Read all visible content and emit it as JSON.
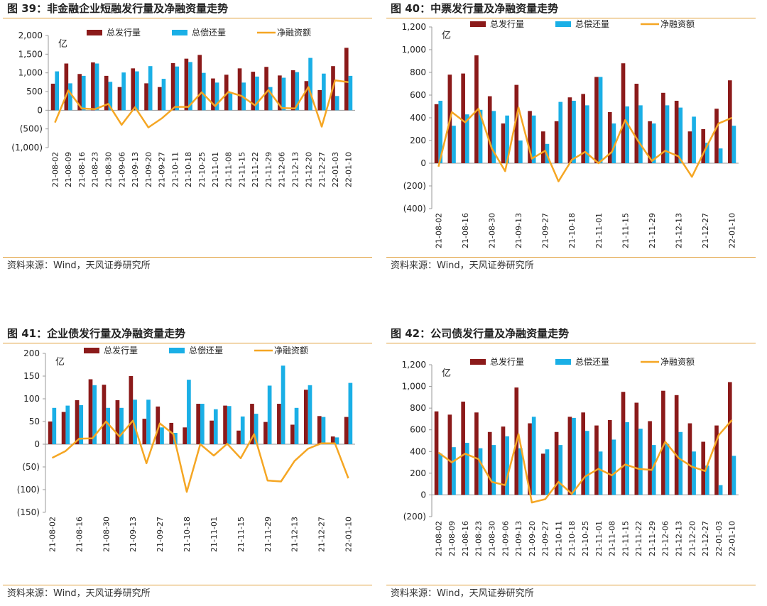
{
  "panels": [
    {
      "title": "图 39：非金融企业短融发行量及净融资量走势",
      "source": "资料来源：Wind，天风证券研究所",
      "unit": "亿",
      "chart_data": {
        "type": "bar",
        "categories": [
          "21-08-02",
          "21-08-09",
          "21-08-16",
          "21-08-23",
          "21-08-30",
          "21-09-06",
          "21-09-13",
          "21-09-20",
          "21-09-27",
          "21-10-11",
          "21-10-18",
          "21-10-25",
          "21-11-01",
          "21-11-08",
          "21-11-15",
          "21-11-22",
          "21-11-29",
          "21-12-06",
          "21-12-13",
          "21-12-20",
          "21-12-27",
          "22-01-03",
          "22-01-10"
        ],
        "category_labels": [
          "21-08-02",
          "21-08-09",
          "21-08-16",
          "21-08-23",
          "21-08-30",
          "21-09-06",
          "21-09-13",
          "21-09-20",
          "21-09-27",
          "21-10-11",
          "21-10-18",
          "21-10-25",
          "21-11-01",
          "21-11-08",
          "21-11-15",
          "21-11-22",
          "21-11-29",
          "21-12-06",
          "21-12-13",
          "21-12-20",
          "21-12-27",
          "22-01-03",
          "22-01-10"
        ],
        "series": [
          {
            "name": "总发行量",
            "type": "bar",
            "color": "#8b1a1a",
            "values": [
              710,
              1250,
              970,
              1280,
              920,
              620,
              1120,
              720,
              620,
              1260,
              1380,
              1480,
              850,
              950,
              1120,
              1030,
              1160,
              930,
              1070,
              780,
              540,
              1180,
              1670
            ]
          },
          {
            "name": "总偿还量",
            "type": "bar",
            "color": "#1aafe6",
            "values": [
              1040,
              720,
              920,
              1250,
              760,
              1010,
              1040,
              1180,
              840,
              1170,
              1290,
              1000,
              740,
              460,
              740,
              900,
              620,
              870,
              1020,
              1400,
              980,
              380,
              920
            ]
          },
          {
            "name": "净融资额",
            "type": "line",
            "color": "#f5a623",
            "values": [
              -330,
              530,
              50,
              30,
              170,
              -390,
              80,
              -460,
              -220,
              90,
              90,
              480,
              110,
              490,
              380,
              130,
              540,
              60,
              50,
              620,
              -440,
              800,
              750
            ]
          }
        ],
        "ylim": [
          -1000,
          2000
        ],
        "yticks": [
          -1000,
          -500,
          0,
          500,
          1000,
          1500,
          2000
        ],
        "ytick_labels": [
          "(1,000)",
          "(500)",
          "0",
          "500",
          "1,000",
          "1,500",
          "2,000"
        ],
        "legend": "top"
      }
    },
    {
      "title": "图 40：中票发行量及净融资量走势",
      "source": "资料来源：Wind，天风证券研究所",
      "unit": "亿",
      "chart_data": {
        "type": "bar",
        "categories": [
          "21-08-02",
          "21-08-09",
          "21-08-16",
          "21-08-23",
          "21-08-30",
          "21-09-06",
          "21-09-13",
          "21-09-20",
          "21-09-27",
          "21-10-11",
          "21-10-18",
          "21-10-25",
          "21-11-01",
          "21-11-08",
          "21-11-15",
          "21-11-22",
          "21-11-29",
          "21-12-06",
          "21-12-13",
          "21-12-20",
          "21-12-27",
          "22-01-03",
          "22-01-10"
        ],
        "category_labels": [
          "21-08-02",
          "",
          "21-08-16",
          "",
          "21-08-30",
          "",
          "21-09-13",
          "",
          "21-09-27",
          "",
          "21-10-18",
          "",
          "21-11-01",
          "",
          "21-11-15",
          "",
          "21-11-29",
          "",
          "21-12-13",
          "",
          "21-12-27",
          "",
          "22-01-10"
        ],
        "series": [
          {
            "name": "总发行量",
            "type": "bar",
            "color": "#8b1a1a",
            "values": [
              520,
              780,
              790,
              950,
              590,
              350,
              690,
              460,
              280,
              370,
              580,
              610,
              760,
              450,
              880,
              700,
              370,
              620,
              550,
              280,
              300,
              480,
              730
            ]
          },
          {
            "name": "总偿还量",
            "type": "bar",
            "color": "#1aafe6",
            "values": [
              550,
              330,
              430,
              470,
              460,
              420,
              200,
              420,
              170,
              540,
              550,
              510,
              760,
              350,
              500,
              510,
              350,
              510,
              490,
              410,
              180,
              130,
              330
            ]
          },
          {
            "name": "净融资额",
            "type": "line",
            "color": "#f5a623",
            "values": [
              -30,
              450,
              360,
              480,
              130,
              -70,
              490,
              40,
              110,
              -160,
              30,
              100,
              0,
              100,
              380,
              190,
              20,
              110,
              60,
              -120,
              120,
              350,
              400
            ]
          }
        ],
        "ylim": [
          -400,
          1200
        ],
        "yticks": [
          -400,
          -200,
          0,
          200,
          400,
          600,
          800,
          1000,
          1200
        ],
        "ytick_labels": [
          "(400)",
          "(200)",
          "0",
          "200",
          "400",
          "600",
          "800",
          "1,000",
          "1,200"
        ],
        "legend": "top"
      }
    },
    {
      "title": "图 41：企业债发行量及净融资量走势",
      "source": "资料来源：Wind，天风证券研究所",
      "unit": "亿",
      "chart_data": {
        "type": "bar",
        "categories": [
          "21-08-02",
          "21-08-09",
          "21-08-16",
          "21-08-23",
          "21-08-30",
          "21-09-06",
          "21-09-13",
          "21-09-20",
          "21-09-27",
          "21-10-11",
          "21-10-18",
          "21-10-25",
          "21-11-01",
          "21-11-08",
          "21-11-15",
          "21-11-22",
          "21-11-29",
          "21-12-06",
          "21-12-13",
          "21-12-20",
          "21-12-27",
          "22-01-03",
          "22-01-10"
        ],
        "category_labels": [
          "21-08-02",
          "",
          "21-08-16",
          "",
          "21-08-30",
          "",
          "21-09-13",
          "",
          "21-09-27",
          "",
          "21-10-18",
          "",
          "21-11-01",
          "",
          "21-11-15",
          "",
          "21-11-29",
          "",
          "21-12-13",
          "",
          "21-12-27",
          "",
          "22-01-10"
        ],
        "series": [
          {
            "name": "总发行量",
            "type": "bar",
            "color": "#8b1a1a",
            "values": [
              50,
              71,
              97,
              143,
              131,
              97,
              150,
              56,
              83,
              47,
              37,
              89,
              52,
              85,
              30,
              89,
              49,
              89,
              43,
              120,
              62,
              17,
              60
            ]
          },
          {
            "name": "总偿还量",
            "type": "bar",
            "color": "#1aafe6",
            "values": [
              80,
              85,
              86,
              130,
              80,
              80,
              98,
              98,
              37,
              25,
              142,
              89,
              77,
              84,
              61,
              67,
              129,
              173,
              80,
              130,
              60,
              15,
              135
            ]
          },
          {
            "name": "净融资额",
            "type": "line",
            "color": "#f5a623",
            "values": [
              -30,
              -15,
              12,
              13,
              50,
              17,
              52,
              -42,
              46,
              22,
              -105,
              0,
              -25,
              1,
              -31,
              22,
              -80,
              -82,
              -37,
              -10,
              2,
              2,
              -75
            ]
          }
        ],
        "ylim": [
          -150,
          200
        ],
        "yticks": [
          -150,
          -100,
          -50,
          0,
          50,
          100,
          150,
          200
        ],
        "ytick_labels": [
          "(150)",
          "(100)",
          "(50)",
          "0",
          "50",
          "100",
          "150",
          "200"
        ],
        "legend": "top"
      }
    },
    {
      "title": "图 42：公司债发行量及净融资量走势",
      "source": "资料来源：Wind，天风证券研究所",
      "unit": "亿",
      "chart_data": {
        "type": "bar",
        "categories": [
          "21-08-02",
          "21-08-09",
          "21-08-16",
          "21-08-23",
          "21-08-30",
          "21-09-06",
          "21-09-13",
          "21-09-20",
          "21-09-27",
          "21-10-11",
          "21-10-18",
          "21-10-25",
          "21-11-01",
          "21-11-08",
          "21-11-15",
          "21-11-22",
          "21-11-29",
          "21-12-06",
          "21-12-13",
          "21-12-20",
          "21-12-27",
          "22-01-03",
          "22-01-10"
        ],
        "category_labels": [
          "21-08-02",
          "21-08-09",
          "21-08-16",
          "21-08-23",
          "21-08-30",
          "21-09-06",
          "21-09-13",
          "21-09-20",
          "21-09-27",
          "21-10-11",
          "21-10-18",
          "21-10-25",
          "21-11-01",
          "21-11-08",
          "21-11-15",
          "21-11-22",
          "21-11-29",
          "21-12-06",
          "21-12-13",
          "21-12-20",
          "21-12-27",
          "22-01-03",
          "22-01-10"
        ],
        "series": [
          {
            "name": "总发行量",
            "type": "bar",
            "color": "#8b1a1a",
            "values": [
              770,
              740,
              860,
              760,
              580,
              630,
              990,
              660,
              380,
              580,
              720,
              760,
              640,
              690,
              950,
              850,
              680,
              960,
              920,
              660,
              490,
              640,
              1040
            ]
          },
          {
            "name": "总偿还量",
            "type": "bar",
            "color": "#1aafe6",
            "values": [
              380,
              440,
              480,
              430,
              460,
              540,
              430,
              720,
              420,
              460,
              710,
              590,
              400,
              510,
              670,
              610,
              460,
              470,
              580,
              400,
              270,
              90,
              360
            ]
          },
          {
            "name": "净融资额",
            "type": "line",
            "color": "#f5a623",
            "values": [
              390,
              300,
              380,
              330,
              120,
              90,
              560,
              -70,
              -40,
              120,
              10,
              170,
              240,
              180,
              280,
              240,
              230,
              490,
              340,
              260,
              220,
              550,
              690
            ]
          }
        ],
        "ylim": [
          -200,
          1200
        ],
        "yticks": [
          -200,
          0,
          200,
          400,
          600,
          800,
          1000,
          1200
        ],
        "ytick_labels": [
          "(200)",
          "0",
          "200",
          "400",
          "600",
          "800",
          "1,000",
          "1,200"
        ],
        "legend": "top"
      }
    }
  ]
}
